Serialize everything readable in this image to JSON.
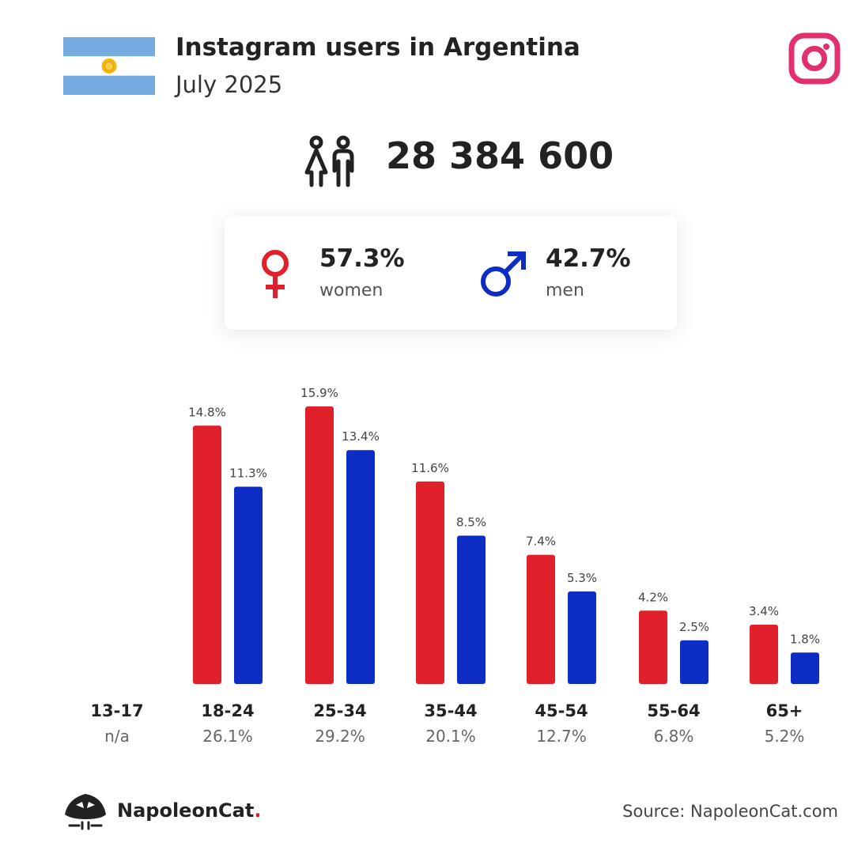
{
  "header": {
    "title": "Instagram users in Argentina",
    "subtitle": "July 2025",
    "flag_icon": "argentina-flag-icon",
    "logo_icon": "instagram-logo-icon"
  },
  "total": {
    "value": "28 384 600",
    "icon": "people-icon"
  },
  "gender": {
    "women": {
      "pct": "57.3%",
      "label": "women",
      "color": "#e0212b",
      "icon": "female-symbol-icon"
    },
    "men": {
      "pct": "42.7%",
      "label": "men",
      "color": "#0e2dc4",
      "icon": "male-symbol-icon"
    }
  },
  "chart_data": {
    "type": "bar",
    "categories": [
      "13-17",
      "18-24",
      "25-34",
      "35-44",
      "45-54",
      "55-64",
      "65+"
    ],
    "category_totals": [
      "n/a",
      "26.1%",
      "29.2%",
      "20.1%",
      "12.7%",
      "6.8%",
      "5.2%"
    ],
    "series": [
      {
        "color": "#e0212b",
        "values": [
          null,
          14.8,
          15.9,
          11.6,
          7.4,
          4.2,
          3.4
        ],
        "labels": [
          "",
          "14.8%",
          "15.9%",
          "11.6%",
          "7.4%",
          "4.2%",
          "3.4%"
        ]
      },
      {
        "color": "#0e2dc4",
        "values": [
          null,
          11.3,
          13.4,
          8.5,
          5.3,
          2.5,
          1.8
        ],
        "labels": [
          "",
          "11.3%",
          "13.4%",
          "8.5%",
          "5.3%",
          "2.5%",
          "1.8%"
        ]
      }
    ],
    "ylim": [
      0,
      15.9
    ],
    "grid": false,
    "legend": "none"
  },
  "footer": {
    "brand": "NapoleonCat",
    "brand_dot": ".",
    "brand_icon": "napoleoncat-logo-icon",
    "source": "Source: NapoleonCat.com"
  }
}
